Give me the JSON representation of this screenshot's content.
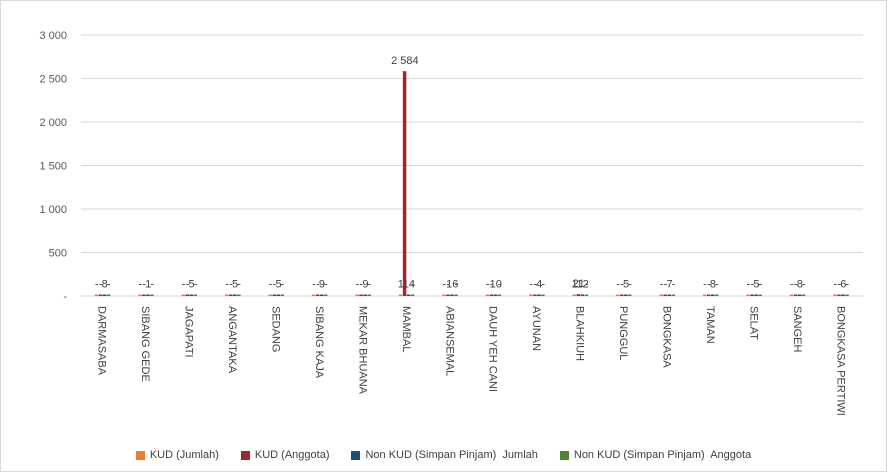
{
  "chart_data": {
    "type": "bar",
    "title": "",
    "xlabel": "",
    "ylabel": "",
    "ylim": [
      0,
      3000
    ],
    "yticks": [
      {
        "value": 0,
        "label": "-"
      },
      {
        "value": 500,
        "label": "500"
      },
      {
        "value": 1000,
        "label": "1 000"
      },
      {
        "value": 1500,
        "label": "1 500"
      },
      {
        "value": 2000,
        "label": "2 000"
      },
      {
        "value": 2500,
        "label": "2 500"
      },
      {
        "value": 3000,
        "label": "3 000"
      }
    ],
    "grid": true,
    "legend_position": "bottom",
    "categories": [
      "DARMASABA",
      "SIBANG GEDE",
      "JAGAPATI",
      "ANGANTAKA",
      "SEDANG",
      "SIBANG KAJA",
      "MEKAR BHUANA",
      "MAMBAL",
      "ABIANSEMAL",
      "DAUH YEH CANI",
      "AYUNAN",
      "BLAHKIUH",
      "PUNGGUL",
      "BONGKASA",
      "TAMAN",
      "SELAT",
      "SANGEH",
      "BONGKASA PERTIWI"
    ],
    "series": [
      {
        "name": "KUD (Jumlah)",
        "color": "#ed7d31",
        "values": [
          0,
          0,
          0,
          0,
          0,
          0,
          0,
          1,
          0,
          0,
          0,
          1,
          0,
          0,
          0,
          0,
          0,
          0
        ],
        "labels": [
          "-",
          "-",
          "-",
          "-",
          "-",
          "-",
          "-",
          "1",
          "-",
          "-",
          "-",
          "1",
          "-",
          "-",
          "-",
          "-",
          "-",
          "-"
        ]
      },
      {
        "name": "KUD (Anggota)",
        "color": "#a5252f",
        "values": [
          0,
          0,
          0,
          0,
          0,
          0,
          0,
          2584,
          0,
          0,
          0,
          21,
          0,
          0,
          0,
          0,
          0,
          0
        ],
        "labels": [
          "-",
          "-",
          "-",
          "-",
          "-",
          "-",
          "-",
          "2 584",
          "-",
          "-",
          "-",
          "21",
          "-",
          "-",
          "-",
          "-",
          "-",
          "-"
        ]
      },
      {
        "name": "Non KUD (Simpan Pinjam)  Jumlah",
        "color": "#1f4e79",
        "values": [
          8,
          1,
          5,
          5,
          5,
          9,
          9,
          14,
          16,
          10,
          4,
          12,
          5,
          7,
          8,
          5,
          8,
          6
        ],
        "labels": [
          "8",
          "1",
          "5",
          "5",
          "5",
          "9",
          "9",
          "14",
          "16",
          "10",
          "4",
          "12",
          "5",
          "7",
          "8",
          "5",
          "8",
          "6"
        ]
      },
      {
        "name": "Non KUD (Simpan Pinjam)  Anggota",
        "color": "#548235",
        "values": [
          0,
          0,
          0,
          0,
          0,
          0,
          0,
          0,
          0,
          0,
          0,
          0,
          0,
          0,
          0,
          0,
          0,
          0
        ],
        "labels": [
          "-",
          "-",
          "-",
          "-",
          "-",
          "-",
          "-",
          "-",
          "-",
          "-",
          "-",
          "-",
          "-",
          "-",
          "-",
          "-",
          "-",
          "-"
        ]
      }
    ]
  }
}
